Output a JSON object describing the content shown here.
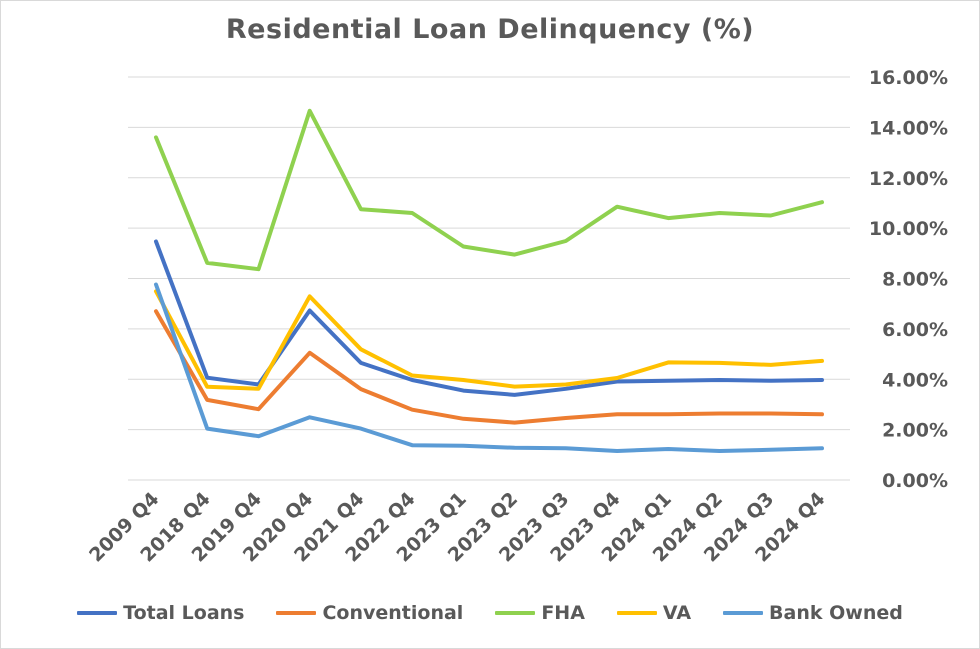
{
  "chart_data": {
    "type": "line",
    "title": "Residential Loan Delinquency (%)",
    "xlabel": "",
    "ylabel": "",
    "ylim": [
      0,
      16
    ],
    "y_ticks": [
      0,
      2,
      4,
      6,
      8,
      10,
      12,
      14,
      16
    ],
    "y_tick_labels": [
      "0.00%",
      "2.00%",
      "4.00%",
      "6.00%",
      "8.00%",
      "10.00%",
      "12.00%",
      "14.00%",
      "16.00%"
    ],
    "y_axis_side": "right",
    "grid": true,
    "legend_position": "bottom",
    "categories": [
      "2009 Q4",
      "2018 Q4",
      "2019 Q4",
      "2020 Q4",
      "2021 Q4",
      "2022 Q4",
      "2023 Q1",
      "2023 Q2",
      "2023 Q3",
      "2023 Q4",
      "2024 Q1",
      "2024 Q2",
      "2024 Q3",
      "2024 Q4"
    ],
    "series": [
      {
        "name": "Total Loans",
        "color": "#4472c4",
        "values": [
          9.47,
          4.06,
          3.79,
          6.73,
          4.65,
          3.97,
          3.55,
          3.38,
          3.62,
          3.91,
          3.94,
          3.97,
          3.94,
          3.97
        ]
      },
      {
        "name": "Conventional",
        "color": "#ed7d31",
        "values": [
          6.7,
          3.18,
          2.81,
          5.05,
          3.61,
          2.79,
          2.43,
          2.28,
          2.46,
          2.61,
          2.61,
          2.64,
          2.64,
          2.61
        ]
      },
      {
        "name": "FHA",
        "color": "#8fd14f",
        "values": [
          13.6,
          8.62,
          8.37,
          14.66,
          10.75,
          10.6,
          9.27,
          8.95,
          9.49,
          10.85,
          10.4,
          10.6,
          10.5,
          11.03
        ]
      },
      {
        "name": "VA",
        "color": "#ffc000",
        "values": [
          7.49,
          3.7,
          3.62,
          7.29,
          5.19,
          4.15,
          3.97,
          3.71,
          3.79,
          4.05,
          4.67,
          4.65,
          4.57,
          4.73
        ]
      },
      {
        "name": "Bank Owned",
        "color": "#5b9bd5",
        "values": [
          7.76,
          2.04,
          1.74,
          2.49,
          2.04,
          1.38,
          1.36,
          1.28,
          1.26,
          1.15,
          1.23,
          1.15,
          1.2,
          1.26
        ]
      }
    ]
  }
}
